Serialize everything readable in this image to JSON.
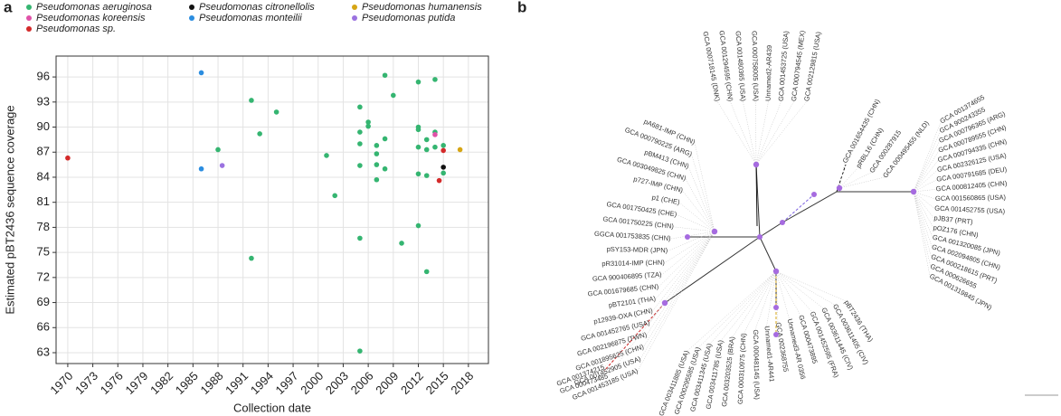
{
  "panel_labels": [
    "a",
    "b"
  ],
  "chart_data": {
    "type": "scatter",
    "xlabel": "Collection date",
    "ylabel": "Estimated pBT2436 sequence coverage",
    "xlim": [
      1968.6,
      2020.4
    ],
    "xticks": [
      1970,
      1973,
      1976,
      1979,
      1982,
      1985,
      1988,
      1991,
      1994,
      1997,
      2000,
      2003,
      2006,
      2009,
      2012,
      2015,
      2018
    ],
    "ylim": [
      61.7,
      98.5
    ],
    "yticks": [
      63,
      66,
      69,
      72,
      75,
      78,
      81,
      84,
      87,
      90,
      93,
      96
    ],
    "grid": true,
    "series": [
      {
        "name": "Pseudomonas aeruginosa",
        "color": "#35b571",
        "x": [
          1992,
          1993,
          1995,
          1988,
          1992,
          2001,
          2002,
          2005,
          2005,
          2005,
          2005,
          2005,
          2005,
          2006,
          2006,
          2007,
          2007,
          2007,
          2007,
          2008,
          2008,
          2008,
          2009,
          2010,
          2012,
          2012,
          2012,
          2012,
          2012,
          2012,
          2013,
          2013,
          2013,
          2013,
          2014,
          2014,
          2014,
          2015,
          2015
        ],
        "values": [
          93.2,
          89.2,
          91.8,
          87.3,
          74.3,
          86.6,
          81.8,
          92.4,
          89.4,
          88.0,
          85.4,
          76.7,
          63.2,
          90.6,
          90.1,
          87.8,
          86.8,
          85.5,
          83.7,
          96.2,
          88.6,
          85.0,
          93.8,
          76.1,
          95.4,
          90.0,
          89.7,
          87.6,
          84.4,
          78.2,
          88.5,
          87.3,
          84.2,
          72.7,
          95.7,
          89.4,
          87.6,
          87.8,
          84.5
        ]
      },
      {
        "name": "Pseudomonas koreensis",
        "color": "#e052a8",
        "x": [
          2014
        ],
        "values": [
          89.1
        ]
      },
      {
        "name": "Pseudomonas sp.",
        "color": "#d42a2a",
        "x": [
          1970,
          2015,
          2014.5
        ],
        "values": [
          86.3,
          87.2,
          83.6
        ]
      },
      {
        "name": "Pseudomonas citronellolis",
        "color": "#111111",
        "x": [
          2015
        ],
        "values": [
          85.2
        ]
      },
      {
        "name": "Pseudomonas monteilii",
        "color": "#2b8de0",
        "x": [
          1986,
          1986
        ],
        "values": [
          96.5,
          85.0
        ]
      },
      {
        "name": "Pseudomonas humanensis",
        "color": "#d6a514",
        "x": [
          2017
        ],
        "values": [
          87.3
        ]
      },
      {
        "name": "Pseudomonas putida",
        "color": "#9b72e0",
        "x": [
          1988.5
        ],
        "values": [
          85.4
        ]
      }
    ]
  },
  "tree": {
    "labels": [
      "GCA 000718145 (DNK)",
      "GCA 001294595 (CHN)",
      "GCA 001480365 (USA)",
      "GCA 000758005 (USA)",
      "Unnamed2-AR439",
      "GCA 001453725 (USA)",
      "GCA 000794545 (MEX)",
      "GCA 002129815 (USA)",
      "GCA 001654435 (CHN)",
      "pRBL16 (CHN)",
      "GCA 000287915",
      "GCA 000495455 (NLD)",
      "GCA 001374655",
      "GCA 900243355",
      "GCA 000796365 (ARG)",
      "GCA 000789555 (CHN)",
      "GCA 000794335 (CHN)",
      "GCA 002326125 (USA)",
      "GCA 000791685 (DEU)",
      "GCA 000812405 (CHN)",
      "GCA 001560865 (USA)",
      "GCA 001452755 (USA)",
      "pJB37 (PRT)",
      "pOZ176 (CHN)",
      "GCA 001320085 (JPN)",
      "GCA 002094805 (CHN)",
      "GCA 000218615 (PRT)",
      "GCA 000626655",
      "GCA 001319845 (JPN)",
      "pBT2436 (THA)",
      "GCA 003611405 (CIV)",
      "GCA 003611445 (CIV)",
      "GCA 001452595 (FRA)",
      "GCA 000473895",
      "Unnamed3-AR 0356",
      "GCA 002368755",
      "Unnamed1-AR441",
      "GCA 000481145 (USA)",
      "GCA 000310975 (CHN)",
      "GCA 003203525 (BRA)",
      "GCA 003411785 (USA)",
      "GCA 003411345 (USA)",
      "GCA 000295585 (USA)",
      "GCA 003411885 (USA)",
      "GCA 001374215",
      "GCA 000473485",
      "pA681-IMP (CHN)",
      "GCA 000790225 (ARG)",
      "pBM413 (CHN)",
      "GCA 003049825 (CHN)",
      "p727-IMP (CHN)",
      "p1 (CHE)",
      "GCA 001750425 (CHE)",
      "GCA 001750225 (CHN)",
      "GGCA 001753835 (CHN)",
      "pSY153-MDR (JPN)",
      "pR31014-IMP (CHN)",
      "GCA 900406895 (TZA)",
      "GCA 001679685 (CHN)",
      "pBT2101 (THA)",
      "p12939-OXA (CHN)",
      "GCA 001452765 (USA)",
      "GCA 002196875 (TWN)",
      "GCA 001895625 (CHN)",
      "GCA 001452905 (USA)",
      "GCA 001453185 (USA)"
    ]
  }
}
